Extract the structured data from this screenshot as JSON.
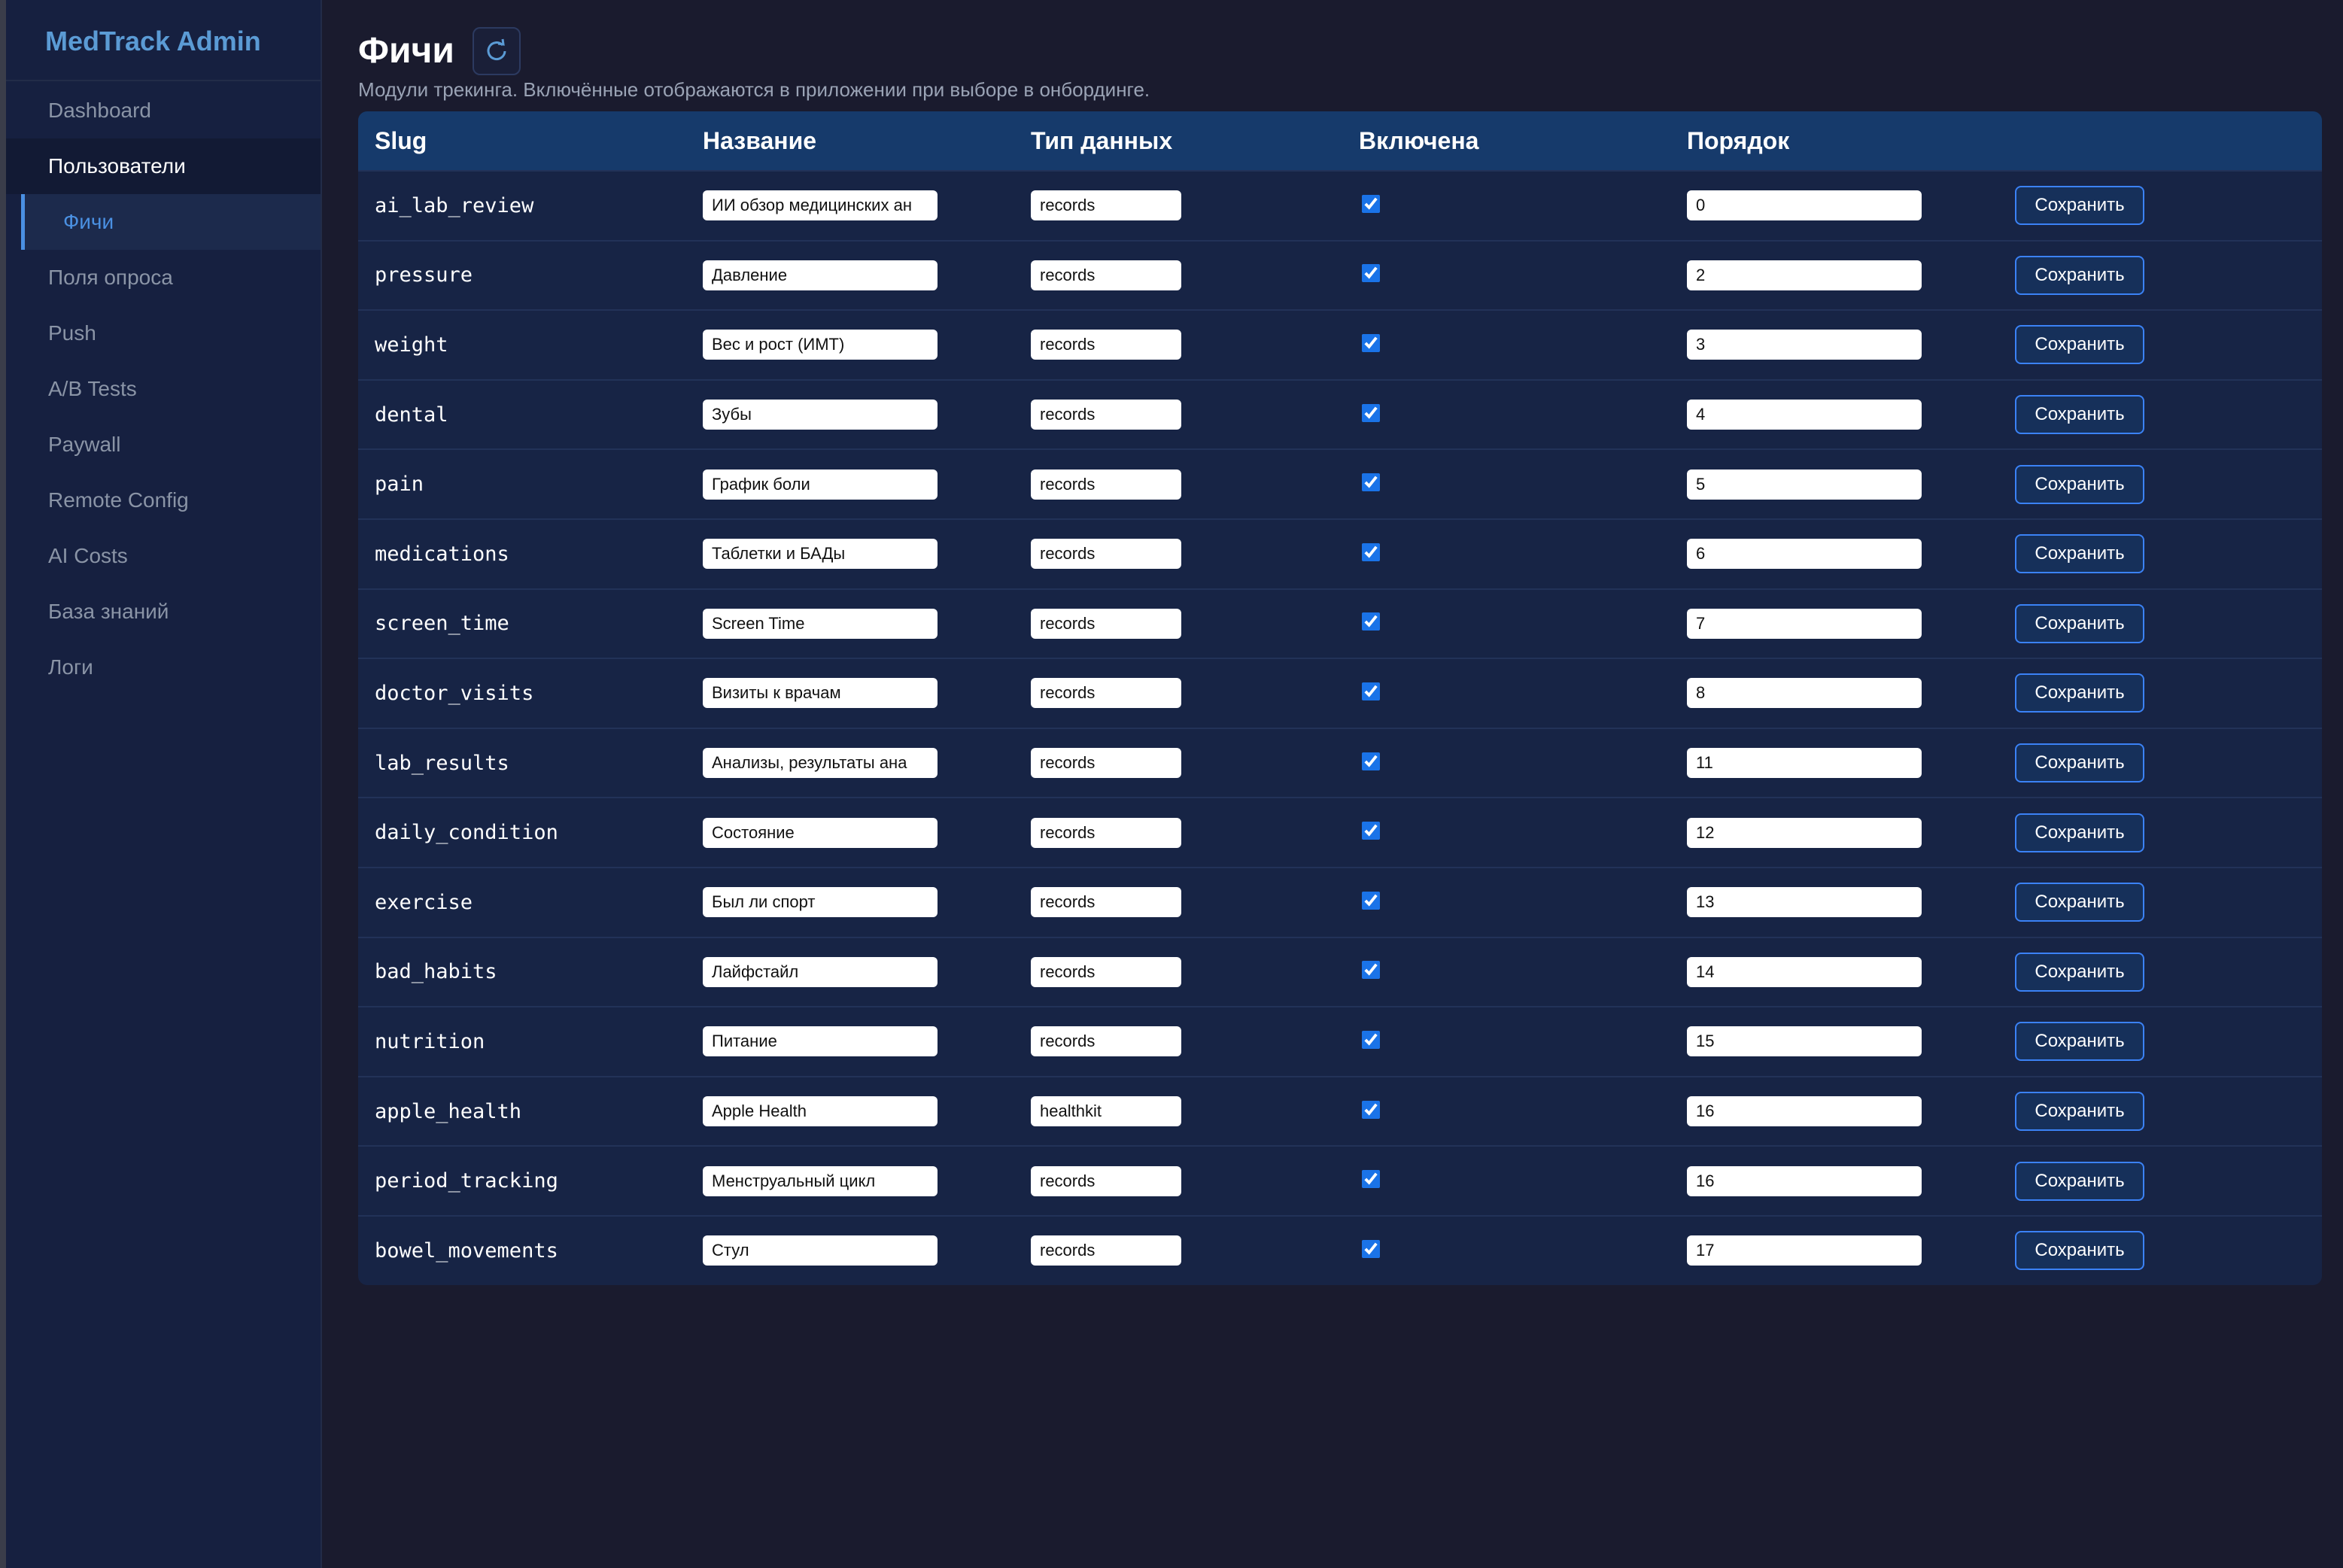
{
  "sidebar": {
    "brand": "MedTrack Admin",
    "nav": [
      "Dashboard",
      "Пользователи",
      "Фичи",
      "Поля опроса",
      "Push",
      "A/B Tests",
      "Paywall",
      "Remote Config",
      "AI Costs",
      "База знаний",
      "Логи"
    ],
    "active": 2,
    "hover": 1
  },
  "header": {
    "title": "Фичи",
    "subtitle": "Модули трекинга. Включённые отображаются в приложении при выборе в онбординге."
  },
  "table": {
    "columns": [
      "Slug",
      "Название",
      "Тип данных",
      "Включена",
      "Порядок"
    ],
    "save_label": "Сохранить",
    "rows": [
      [
        "ai_lab_review",
        "ИИ обзор медицинских ан",
        "records",
        true,
        0
      ],
      [
        "pressure",
        "Давление",
        "records",
        true,
        2
      ],
      [
        "weight",
        "Вес и рост (ИМТ)",
        "records",
        true,
        3
      ],
      [
        "dental",
        "Зубы",
        "records",
        true,
        4
      ],
      [
        "pain",
        "График боли",
        "records",
        true,
        5
      ],
      [
        "medications",
        "Таблетки и БАДы",
        "records",
        true,
        6
      ],
      [
        "screen_time",
        "Screen Time",
        "records",
        true,
        7
      ],
      [
        "doctor_visits",
        "Визиты к врачам",
        "records",
        true,
        8
      ],
      [
        "lab_results",
        "Анализы, результаты ана",
        "records",
        true,
        11
      ],
      [
        "daily_condition",
        "Состояние",
        "records",
        true,
        12
      ],
      [
        "exercise",
        "Был ли спорт",
        "records",
        true,
        13
      ],
      [
        "bad_habits",
        "Лайфстайл",
        "records",
        true,
        14
      ],
      [
        "nutrition",
        "Питание",
        "records",
        true,
        15
      ],
      [
        "apple_health",
        "Apple Health",
        "healthkit",
        true,
        16
      ],
      [
        "period_tracking",
        "Менструальный цикл",
        "records",
        true,
        16
      ],
      [
        "bowel_movements",
        "Стул",
        "records",
        true,
        17
      ]
    ]
  }
}
